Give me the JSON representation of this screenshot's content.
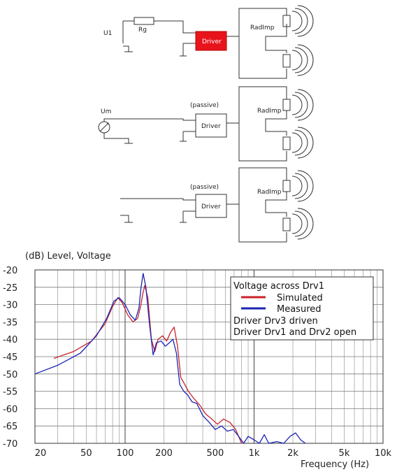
{
  "schematic": {
    "circuit1": {
      "source_label": "U1",
      "resistor_label": "Rg",
      "driver_label": "Driver",
      "radimp_label": "RadImp"
    },
    "circuit2": {
      "source_label": "Um",
      "passive_label": "(passive)",
      "driver_label": "Driver",
      "radimp_label": "RadImp"
    },
    "circuit3": {
      "passive_label": "(passive)",
      "driver_label": "Driver",
      "radimp_label": "RadImp"
    },
    "colors": {
      "driven_driver": "#e8141c",
      "wire": "#333333"
    }
  },
  "chart_data": {
    "type": "line",
    "title": "(dB)  Level, Voltage",
    "xlabel": "Frequency  (Hz)",
    "ylabel": "(dB)",
    "x_scale": "log",
    "xlim": [
      20,
      10000
    ],
    "ylim": [
      -70,
      -20
    ],
    "x_ticks": [
      20,
      50,
      100,
      200,
      500,
      1000,
      2000,
      5000,
      10000
    ],
    "x_tick_labels": [
      "20",
      "50",
      "100",
      "200",
      "500",
      "1k",
      "2k",
      "5k",
      "10k"
    ],
    "y_ticks": [
      -20,
      -25,
      -30,
      -35,
      -40,
      -45,
      -50,
      -55,
      -60,
      -65,
      -70
    ],
    "y_tick_labels": [
      "-20",
      "-25",
      "-30",
      "-35",
      "-40",
      "-45",
      "-50",
      "-55",
      "-60",
      "-65",
      "-70"
    ],
    "grid": true,
    "legend": {
      "position": "top-right",
      "title": "Voltage across Drv1",
      "notes": [
        "Driver Drv3 driven",
        "Driver Drv1 and Drv2 open"
      ]
    },
    "series": [
      {
        "name": "Simulated",
        "color": "#c8232b",
        "x": [
          28,
          40,
          55,
          70,
          80,
          88,
          95,
          105,
          115,
          125,
          132,
          137,
          142,
          150,
          160,
          170,
          180,
          195,
          210,
          225,
          240,
          255,
          270,
          290,
          310,
          340,
          380,
          420,
          470,
          520,
          580,
          650,
          720,
          800
        ],
        "y": [
          -45.5,
          -43.5,
          -40.5,
          -35.5,
          -30.5,
          -28.0,
          -29.5,
          -33.0,
          -35.0,
          -34.0,
          -30.5,
          -27.0,
          -24.5,
          -28.0,
          -40.0,
          -43.5,
          -40.0,
          -39.0,
          -40.5,
          -38.0,
          -36.5,
          -42.0,
          -51.0,
          -53.0,
          -55.0,
          -57.0,
          -59.0,
          -61.5,
          -63.0,
          -64.5,
          -63.0,
          -64.0,
          -66.0,
          -70.0
        ]
      },
      {
        "name": "Measured",
        "color": "#1c24b4",
        "x": [
          20,
          30,
          45,
          60,
          72,
          82,
          90,
          100,
          110,
          120,
          128,
          133,
          138,
          145,
          155,
          165,
          175,
          190,
          205,
          220,
          235,
          250,
          265,
          285,
          305,
          330,
          360,
          400,
          450,
          500,
          560,
          620,
          690,
          760,
          830,
          900,
          1000,
          1100,
          1200,
          1300,
          1500,
          1700,
          1900,
          2100,
          2300,
          2500
        ],
        "y": [
          -50.0,
          -47.5,
          -44.0,
          -39.0,
          -34.0,
          -29.0,
          -28.0,
          -30.0,
          -33.0,
          -34.5,
          -31.0,
          -25.0,
          -21.0,
          -25.0,
          -36.0,
          -44.5,
          -41.0,
          -40.5,
          -42.0,
          -41.0,
          -40.0,
          -44.0,
          -53.0,
          -55.0,
          -56.0,
          -58.0,
          -58.5,
          -62.0,
          -64.0,
          -66.0,
          -65.0,
          -66.5,
          -66.0,
          -68.0,
          -70.0,
          -68.0,
          -69.0,
          -70.0,
          -67.5,
          -70.0,
          -69.5,
          -70.0,
          -68.0,
          -67.0,
          -69.0,
          -70.0
        ]
      }
    ]
  }
}
